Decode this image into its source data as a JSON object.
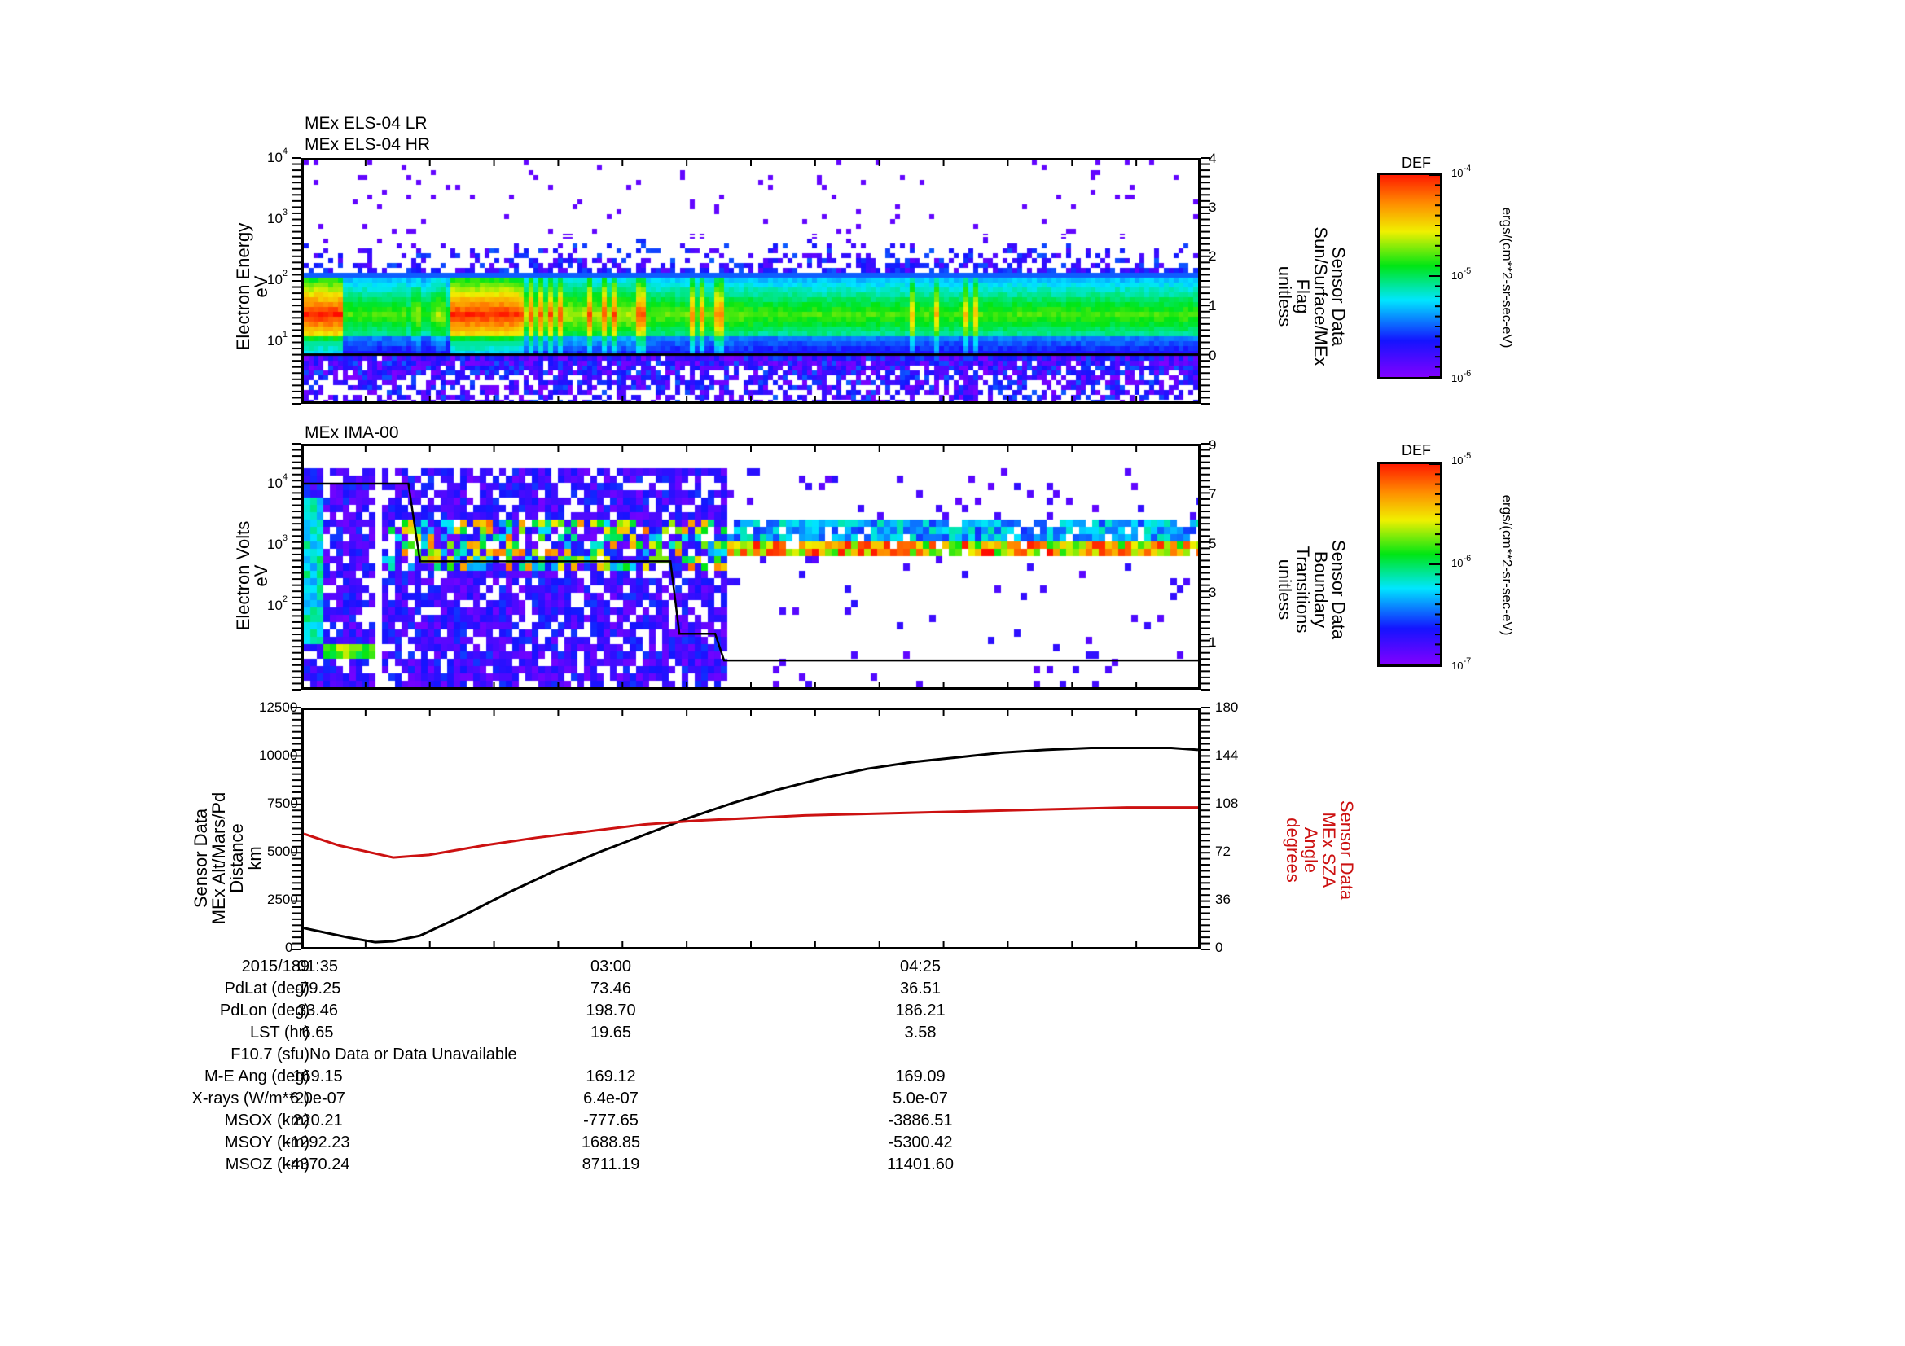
{
  "chart_data": [
    {
      "type": "heatmap",
      "panel": 1,
      "titles": [
        "MEx ELS-04 LR",
        "MEx ELS-04 HR"
      ],
      "ylabel": [
        "Electron Energy",
        "eV"
      ],
      "yscale": "log",
      "ylim": [
        1,
        10000
      ],
      "yticks": [
        "10^1",
        "10^2",
        "10^3",
        "10^4"
      ],
      "y2label": [
        "Sensor Data",
        "Sun/Surface/MEx",
        "Flag",
        "unitless"
      ],
      "y2lim": [
        -1,
        4
      ],
      "y2ticks": [
        "0",
        "1",
        "2",
        "3",
        "4"
      ],
      "overlay_lines": [
        {
          "name": "Sun/Surface/MEx Flag",
          "value": 0,
          "color": "#000000"
        }
      ],
      "colorbar": {
        "title": "DEF",
        "scale": "log",
        "range": [
          "10^-6",
          "10^-4"
        ],
        "ticks": [
          "10^-4",
          "10^-5",
          "10^-6"
        ],
        "unit": "ergs/(cm**2-sr-sec-eV)"
      }
    },
    {
      "type": "heatmap",
      "panel": 2,
      "titles": [
        "MEx IMA-00"
      ],
      "ylabel": [
        "Electron Volts",
        "eV"
      ],
      "yscale": "log",
      "ylim": [
        5,
        40000
      ],
      "yticks": [
        "10^2",
        "10^3",
        "10^4"
      ],
      "y2label": [
        "Sensor Data",
        "Boundary",
        "Transitions",
        "unitless"
      ],
      "y2lim": [
        0,
        9
      ],
      "y2ticks": [
        "1",
        "3",
        "5",
        "7",
        "9"
      ],
      "overlay_lines": [
        {
          "name": "Boundary Transitions",
          "steps": [
            [
              0.0,
              7.6
            ],
            [
              0.117,
              7.6
            ],
            [
              0.13,
              4.7
            ],
            [
              0.41,
              4.7
            ],
            [
              0.42,
              2.0
            ],
            [
              0.46,
              2.0
            ],
            [
              0.47,
              1.0
            ],
            [
              1.0,
              1.0
            ]
          ],
          "color": "#000000"
        }
      ],
      "colorbar": {
        "title": "DEF",
        "scale": "log",
        "range": [
          "10^-7",
          "10^-5"
        ],
        "ticks": [
          "10^-5",
          "10^-6",
          "10^-7"
        ],
        "unit": "ergs/(cm**2-sr-sec-eV)"
      }
    },
    {
      "type": "line",
      "panel": 3,
      "xlabel": "",
      "x_ticks": [
        "01:35",
        "03:00",
        "04:25"
      ],
      "ylabel": [
        "Sensor Data",
        "MEx Alt/Mars/Pd",
        "Distance",
        "km"
      ],
      "ylim": [
        0,
        12500
      ],
      "yticks": [
        "0",
        "2500",
        "5000",
        "7500",
        "10000",
        "12500"
      ],
      "y2label": [
        "Sensor Data",
        "MEx SZA",
        "Angle",
        "degrees"
      ],
      "y2lim": [
        0,
        180
      ],
      "y2ticks": [
        "0",
        "36",
        "72",
        "108",
        "144",
        "180"
      ],
      "grid": false,
      "series": [
        {
          "name": "MEx Alt/Mars/Pd Distance (km)",
          "color": "#000000",
          "axis": "left",
          "x": [
            0.0,
            0.05,
            0.08,
            0.1,
            0.13,
            0.18,
            0.23,
            0.28,
            0.33,
            0.38,
            0.43,
            0.48,
            0.53,
            0.58,
            0.63,
            0.68,
            0.73,
            0.78,
            0.83,
            0.88,
            0.93,
            0.97,
            1.0
          ],
          "values": [
            1000,
            500,
            250,
            300,
            600,
            1700,
            2900,
            4000,
            5000,
            5900,
            6800,
            7600,
            8300,
            8900,
            9400,
            9750,
            10000,
            10250,
            10400,
            10500,
            10500,
            10500,
            10400
          ]
        },
        {
          "name": "MEx SZA Angle (deg)",
          "color": "#cc1111",
          "axis": "right",
          "x": [
            0.0,
            0.04,
            0.08,
            0.1,
            0.14,
            0.2,
            0.26,
            0.32,
            0.38,
            0.44,
            0.5,
            0.56,
            0.62,
            0.68,
            0.74,
            0.8,
            0.86,
            0.92,
            1.0
          ],
          "values": [
            86,
            77,
            71,
            68,
            70,
            77,
            83,
            88,
            93,
            96,
            98,
            100,
            101,
            102,
            103,
            104,
            105,
            106,
            106
          ]
        }
      ]
    }
  ],
  "panel1": {
    "title1": "MEx ELS-04 LR",
    "title2": "MEx ELS-04 HR",
    "ylabel1": "Electron Energy",
    "ylabel2": "eV",
    "yticks": [
      {
        "base": "10",
        "exp": "4"
      },
      {
        "base": "10",
        "exp": "3"
      },
      {
        "base": "10",
        "exp": "2"
      },
      {
        "base": "10",
        "exp": "1"
      }
    ],
    "y2ticks": [
      "4",
      "3",
      "2",
      "1",
      "0"
    ],
    "y2label": [
      "Sensor Data",
      "Sun/Surface/MEx",
      "Flag",
      "unitless"
    ],
    "colorbar_title": "DEF",
    "colorbar_ticks": [
      {
        "base": "10",
        "exp": "-4"
      },
      {
        "base": "10",
        "exp": "-5"
      },
      {
        "base": "10",
        "exp": "-6"
      }
    ],
    "colorbar_unit": "ergs/(cm**2-sr-sec-eV)"
  },
  "panel2": {
    "title": "MEx IMA-00",
    "ylabel1": "Electron Volts",
    "ylabel2": "eV",
    "yticks": [
      {
        "base": "10",
        "exp": "4"
      },
      {
        "base": "10",
        "exp": "3"
      },
      {
        "base": "10",
        "exp": "2"
      }
    ],
    "y2ticks": [
      "9",
      "7",
      "5",
      "3",
      "1"
    ],
    "y2label": [
      "Sensor Data",
      "Boundary",
      "Transitions",
      "unitless"
    ],
    "colorbar_title": "DEF",
    "colorbar_ticks": [
      {
        "base": "10",
        "exp": "-5"
      },
      {
        "base": "10",
        "exp": "-6"
      },
      {
        "base": "10",
        "exp": "-7"
      }
    ],
    "colorbar_unit": "ergs/(cm**2-sr-sec-eV)"
  },
  "panel3": {
    "ylabel": [
      "Sensor Data",
      "MEx Alt/Mars/Pd",
      "Distance",
      "km"
    ],
    "yticks": [
      "12500",
      "10000",
      "7500",
      "5000",
      "2500",
      "0"
    ],
    "y2ticks": [
      "180",
      "144",
      "108",
      "72",
      "36",
      "0"
    ],
    "y2label": [
      "Sensor Data",
      "MEx SZA",
      "Angle",
      "degrees"
    ],
    "y2label_color": "#cc1111"
  },
  "ephemeris": {
    "rows": [
      {
        "label": "2015/189",
        "values": [
          "01:35",
          "03:00",
          "04:25"
        ]
      },
      {
        "label": "PdLat (deg)",
        "values": [
          "-79.25",
          "73.46",
          "36.51"
        ]
      },
      {
        "label": "PdLon (deg)",
        "values": [
          "33.46",
          "198.70",
          "186.21"
        ]
      },
      {
        "label": "LST (hr)",
        "values": [
          "6.65",
          "19.65",
          "3.58"
        ]
      },
      {
        "label": "F10.7 (sfu)",
        "values": [
          "No Data or Data Unavailable",
          "",
          ""
        ]
      },
      {
        "label": "M-E Ang (deg)",
        "values": [
          "169.15",
          "169.12",
          "169.09"
        ]
      },
      {
        "label": "X-rays (W/m**2)",
        "values": [
          "6.0e-07",
          "6.4e-07",
          "5.0e-07"
        ]
      },
      {
        "label": "MSOX (km)",
        "values": [
          "220.21",
          "-777.65",
          "-3886.51"
        ]
      },
      {
        "label": "MSOY (km)",
        "values": [
          "-1292.23",
          "1688.85",
          "-5300.42"
        ]
      },
      {
        "label": "MSOZ (km)",
        "values": [
          "-4370.24",
          "8711.19",
          "11401.60"
        ]
      }
    ]
  }
}
